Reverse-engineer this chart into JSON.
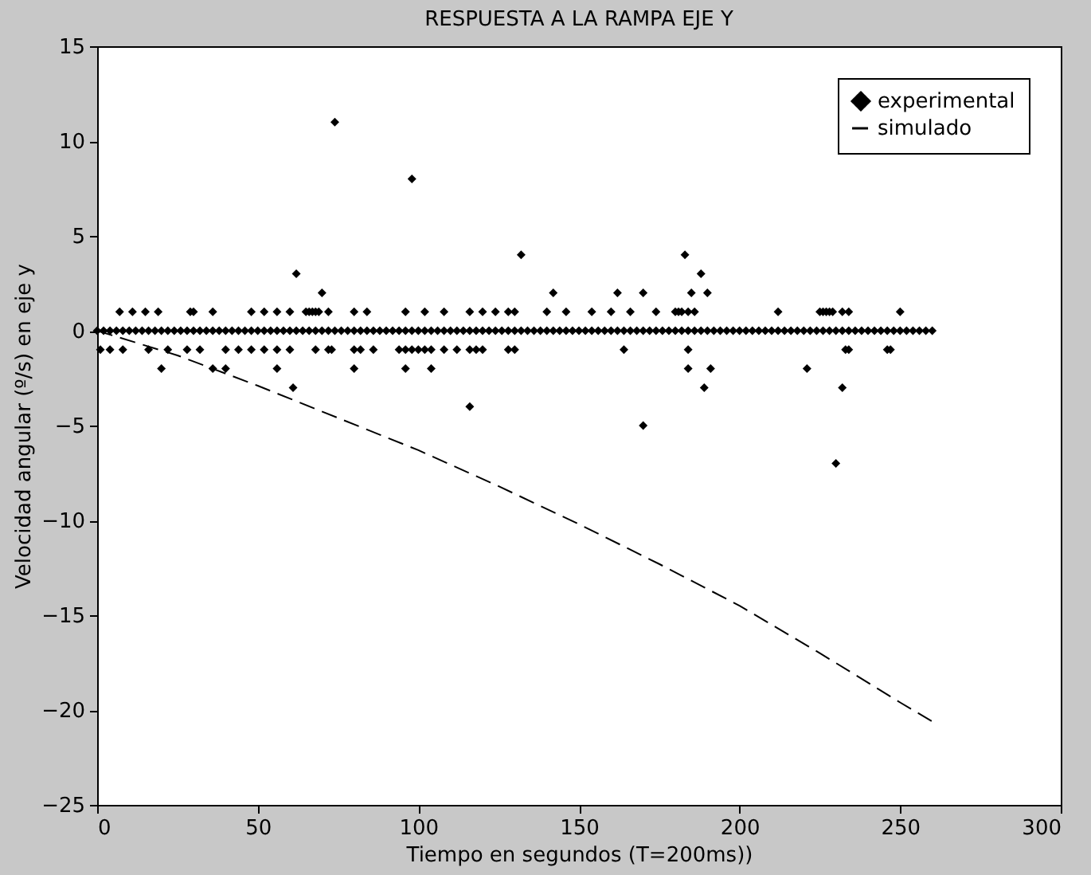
{
  "chart_data": {
    "type": "scatter",
    "title": "RESPUESTA A LA RAMPA EJE Y",
    "xlabel": "Tiempo en segundos (T=200ms))",
    "ylabel": "Velocidad angular (º/s) en eje y",
    "xlim": [
      0,
      300
    ],
    "ylim": [
      -25,
      15
    ],
    "xticks": [
      0,
      50,
      100,
      150,
      200,
      250,
      300
    ],
    "yticks": [
      -25,
      -20,
      -15,
      -10,
      -5,
      0,
      5,
      10,
      15
    ],
    "grid": false,
    "legend": "top right",
    "series": [
      {
        "name": "experimental",
        "color": "#000000",
        "marker": "diamond",
        "x": [
          0,
          2,
          4,
          6,
          8,
          10,
          12,
          14,
          16,
          18,
          20,
          22,
          24,
          26,
          28,
          30,
          32,
          34,
          36,
          38,
          40,
          42,
          44,
          46,
          48,
          50,
          52,
          54,
          56,
          58,
          60,
          62,
          64,
          66,
          68,
          70,
          72,
          74,
          76,
          78,
          80,
          82,
          84,
          86,
          88,
          90,
          92,
          94,
          96,
          98,
          100,
          102,
          104,
          106,
          108,
          110,
          112,
          114,
          116,
          118,
          120,
          122,
          124,
          126,
          128,
          130,
          132,
          134,
          136,
          138,
          140,
          142,
          144,
          146,
          148,
          150,
          152,
          154,
          156,
          158,
          160,
          162,
          164,
          166,
          168,
          170,
          172,
          174,
          176,
          178,
          180,
          182,
          184,
          186,
          188,
          190,
          192,
          194,
          196,
          198,
          200,
          202,
          204,
          206,
          208,
          210,
          212,
          214,
          216,
          218,
          220,
          222,
          224,
          226,
          228,
          230,
          232,
          234,
          236,
          238,
          240,
          242,
          244,
          246,
          248,
          250,
          252,
          254,
          256,
          258,
          260,
          7,
          11,
          15,
          19,
          29,
          30,
          36,
          48,
          52,
          56,
          60,
          65,
          66,
          67,
          68,
          69,
          72,
          80,
          84,
          96,
          102,
          108,
          116,
          120,
          124,
          128,
          130,
          140,
          146,
          154,
          160,
          166,
          174,
          180,
          181,
          182,
          184,
          186,
          212,
          225,
          226,
          227,
          228,
          229,
          232,
          234,
          250,
          70,
          142,
          162,
          170,
          190,
          185,
          62,
          188,
          132,
          183,
          98,
          74,
          1,
          4,
          8,
          16,
          22,
          28,
          32,
          40,
          44,
          48,
          52,
          56,
          60,
          68,
          72,
          73,
          80,
          82,
          86,
          94,
          96,
          98,
          100,
          102,
          104,
          108,
          112,
          116,
          118,
          120,
          128,
          130,
          164,
          184,
          233,
          234,
          246,
          247,
          20,
          36,
          40,
          56,
          80,
          96,
          104,
          184,
          191,
          221,
          61,
          189,
          232,
          116,
          170,
          230
        ],
        "values": [
          0,
          0,
          0,
          0,
          0,
          0,
          0,
          0,
          0,
          0,
          0,
          0,
          0,
          0,
          0,
          0,
          0,
          0,
          0,
          0,
          0,
          0,
          0,
          0,
          0,
          0,
          0,
          0,
          0,
          0,
          0,
          0,
          0,
          0,
          0,
          0,
          0,
          0,
          0,
          0,
          0,
          0,
          0,
          0,
          0,
          0,
          0,
          0,
          0,
          0,
          0,
          0,
          0,
          0,
          0,
          0,
          0,
          0,
          0,
          0,
          0,
          0,
          0,
          0,
          0,
          0,
          0,
          0,
          0,
          0,
          0,
          0,
          0,
          0,
          0,
          0,
          0,
          0,
          0,
          0,
          0,
          0,
          0,
          0,
          0,
          0,
          0,
          0,
          0,
          0,
          0,
          0,
          0,
          0,
          0,
          0,
          0,
          0,
          0,
          0,
          0,
          0,
          0,
          0,
          0,
          0,
          0,
          0,
          0,
          0,
          0,
          0,
          0,
          0,
          0,
          0,
          0,
          0,
          0,
          0,
          0,
          0,
          0,
          0,
          0,
          0,
          0,
          0,
          0,
          0,
          0,
          1,
          1,
          1,
          1,
          1,
          1,
          1,
          1,
          1,
          1,
          1,
          1,
          1,
          1,
          1,
          1,
          1,
          1,
          1,
          1,
          1,
          1,
          1,
          1,
          1,
          1,
          1,
          1,
          1,
          1,
          1,
          1,
          1,
          1,
          1,
          1,
          1,
          1,
          1,
          1,
          1,
          1,
          1,
          1,
          1,
          1,
          1,
          2,
          2,
          2,
          2,
          2,
          2,
          3,
          3,
          4,
          4,
          8,
          11,
          -1,
          -1,
          -1,
          -1,
          -1,
          -1,
          -1,
          -1,
          -1,
          -1,
          -1,
          -1,
          -1,
          -1,
          -1,
          -1,
          -1,
          -1,
          -1,
          -1,
          -1,
          -1,
          -1,
          -1,
          -1,
          -1,
          -1,
          -1,
          -1,
          -1,
          -1,
          -1,
          -1,
          -1,
          -1,
          -1,
          -1,
          -1,
          -2,
          -2,
          -2,
          -2,
          -2,
          -2,
          -2,
          -2,
          -2,
          -2,
          -3,
          -3,
          -3,
          -4,
          -5,
          -7
        ]
      },
      {
        "name": "simulado",
        "type": "line",
        "color": "#000000",
        "line_style": "dashed",
        "x": [
          0,
          25,
          50,
          75,
          100,
          125,
          150,
          175,
          200,
          225,
          250,
          260
        ],
        "values": [
          0,
          -1.3,
          -2.9,
          -4.6,
          -6.3,
          -8.2,
          -10.2,
          -12.3,
          -14.5,
          -17.0,
          -19.6,
          -20.6
        ]
      }
    ]
  }
}
